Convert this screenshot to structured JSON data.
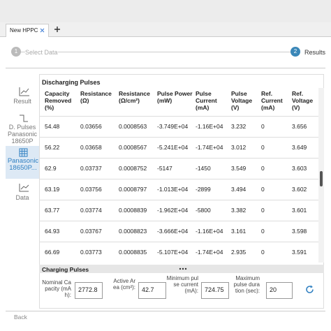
{
  "tabs": [
    {
      "label": "New HPPC"
    }
  ],
  "steps": [
    {
      "number": "1",
      "label": "Select Data"
    },
    {
      "number": "2",
      "label": "Results"
    }
  ],
  "sidebar": [
    {
      "label": "Result"
    },
    {
      "label": "D. Pulses Panasonic 18650P"
    },
    {
      "label": "Panasonic 18650P..."
    },
    {
      "label": "Data"
    }
  ],
  "discharging": {
    "title": "Discharging Pulses",
    "columns": [
      "Capacity Removed (%)",
      "Resistance (Ω)",
      "Resistance (Ω/cm²)",
      "Pulse Power (mW)",
      "Pulse Current (mA)",
      "Pulse Voltage (V)",
      "Ref. Current (mA)",
      "Ref. Voltage (V)"
    ],
    "rows": [
      [
        "54.48",
        "0.03656",
        "0.0008563",
        "-3.749E+04",
        "-1.16E+04",
        "3.232",
        "0",
        "3.656"
      ],
      [
        "56.22",
        "0.03658",
        "0.0008567",
        "-5.241E+04",
        "-1.74E+04",
        "3.012",
        "0",
        "3.649"
      ],
      [
        "62.9",
        "0.03737",
        "0.0008752",
        "-5147",
        "-1450",
        "3.549",
        "0",
        "3.603"
      ],
      [
        "63.19",
        "0.03756",
        "0.0008797",
        "-1.013E+04",
        "-2899",
        "3.494",
        "0",
        "3.602"
      ],
      [
        "63.77",
        "0.03774",
        "0.0008839",
        "-1.962E+04",
        "-5800",
        "3.382",
        "0",
        "3.601"
      ],
      [
        "64.93",
        "0.03767",
        "0.0008823",
        "-3.666E+04",
        "-1.16E+04",
        "3.161",
        "0",
        "3.598"
      ],
      [
        "66.69",
        "0.03773",
        "0.0008835",
        "-5.107E+04",
        "-1.74E+04",
        "2.935",
        "0",
        "3.591"
      ]
    ]
  },
  "charging": {
    "title": "Charging Pulses"
  },
  "inputs": [
    {
      "label": "Nominal Capacity (mAh):",
      "value": "2772.8"
    },
    {
      "label": "Active Area (cm²):",
      "value": "42.7"
    },
    {
      "label": "Minimum pulse current (mA):",
      "value": "724.75"
    },
    {
      "label": "Maximum pulse duration (sec):",
      "value": "20"
    }
  ],
  "back": "Back"
}
